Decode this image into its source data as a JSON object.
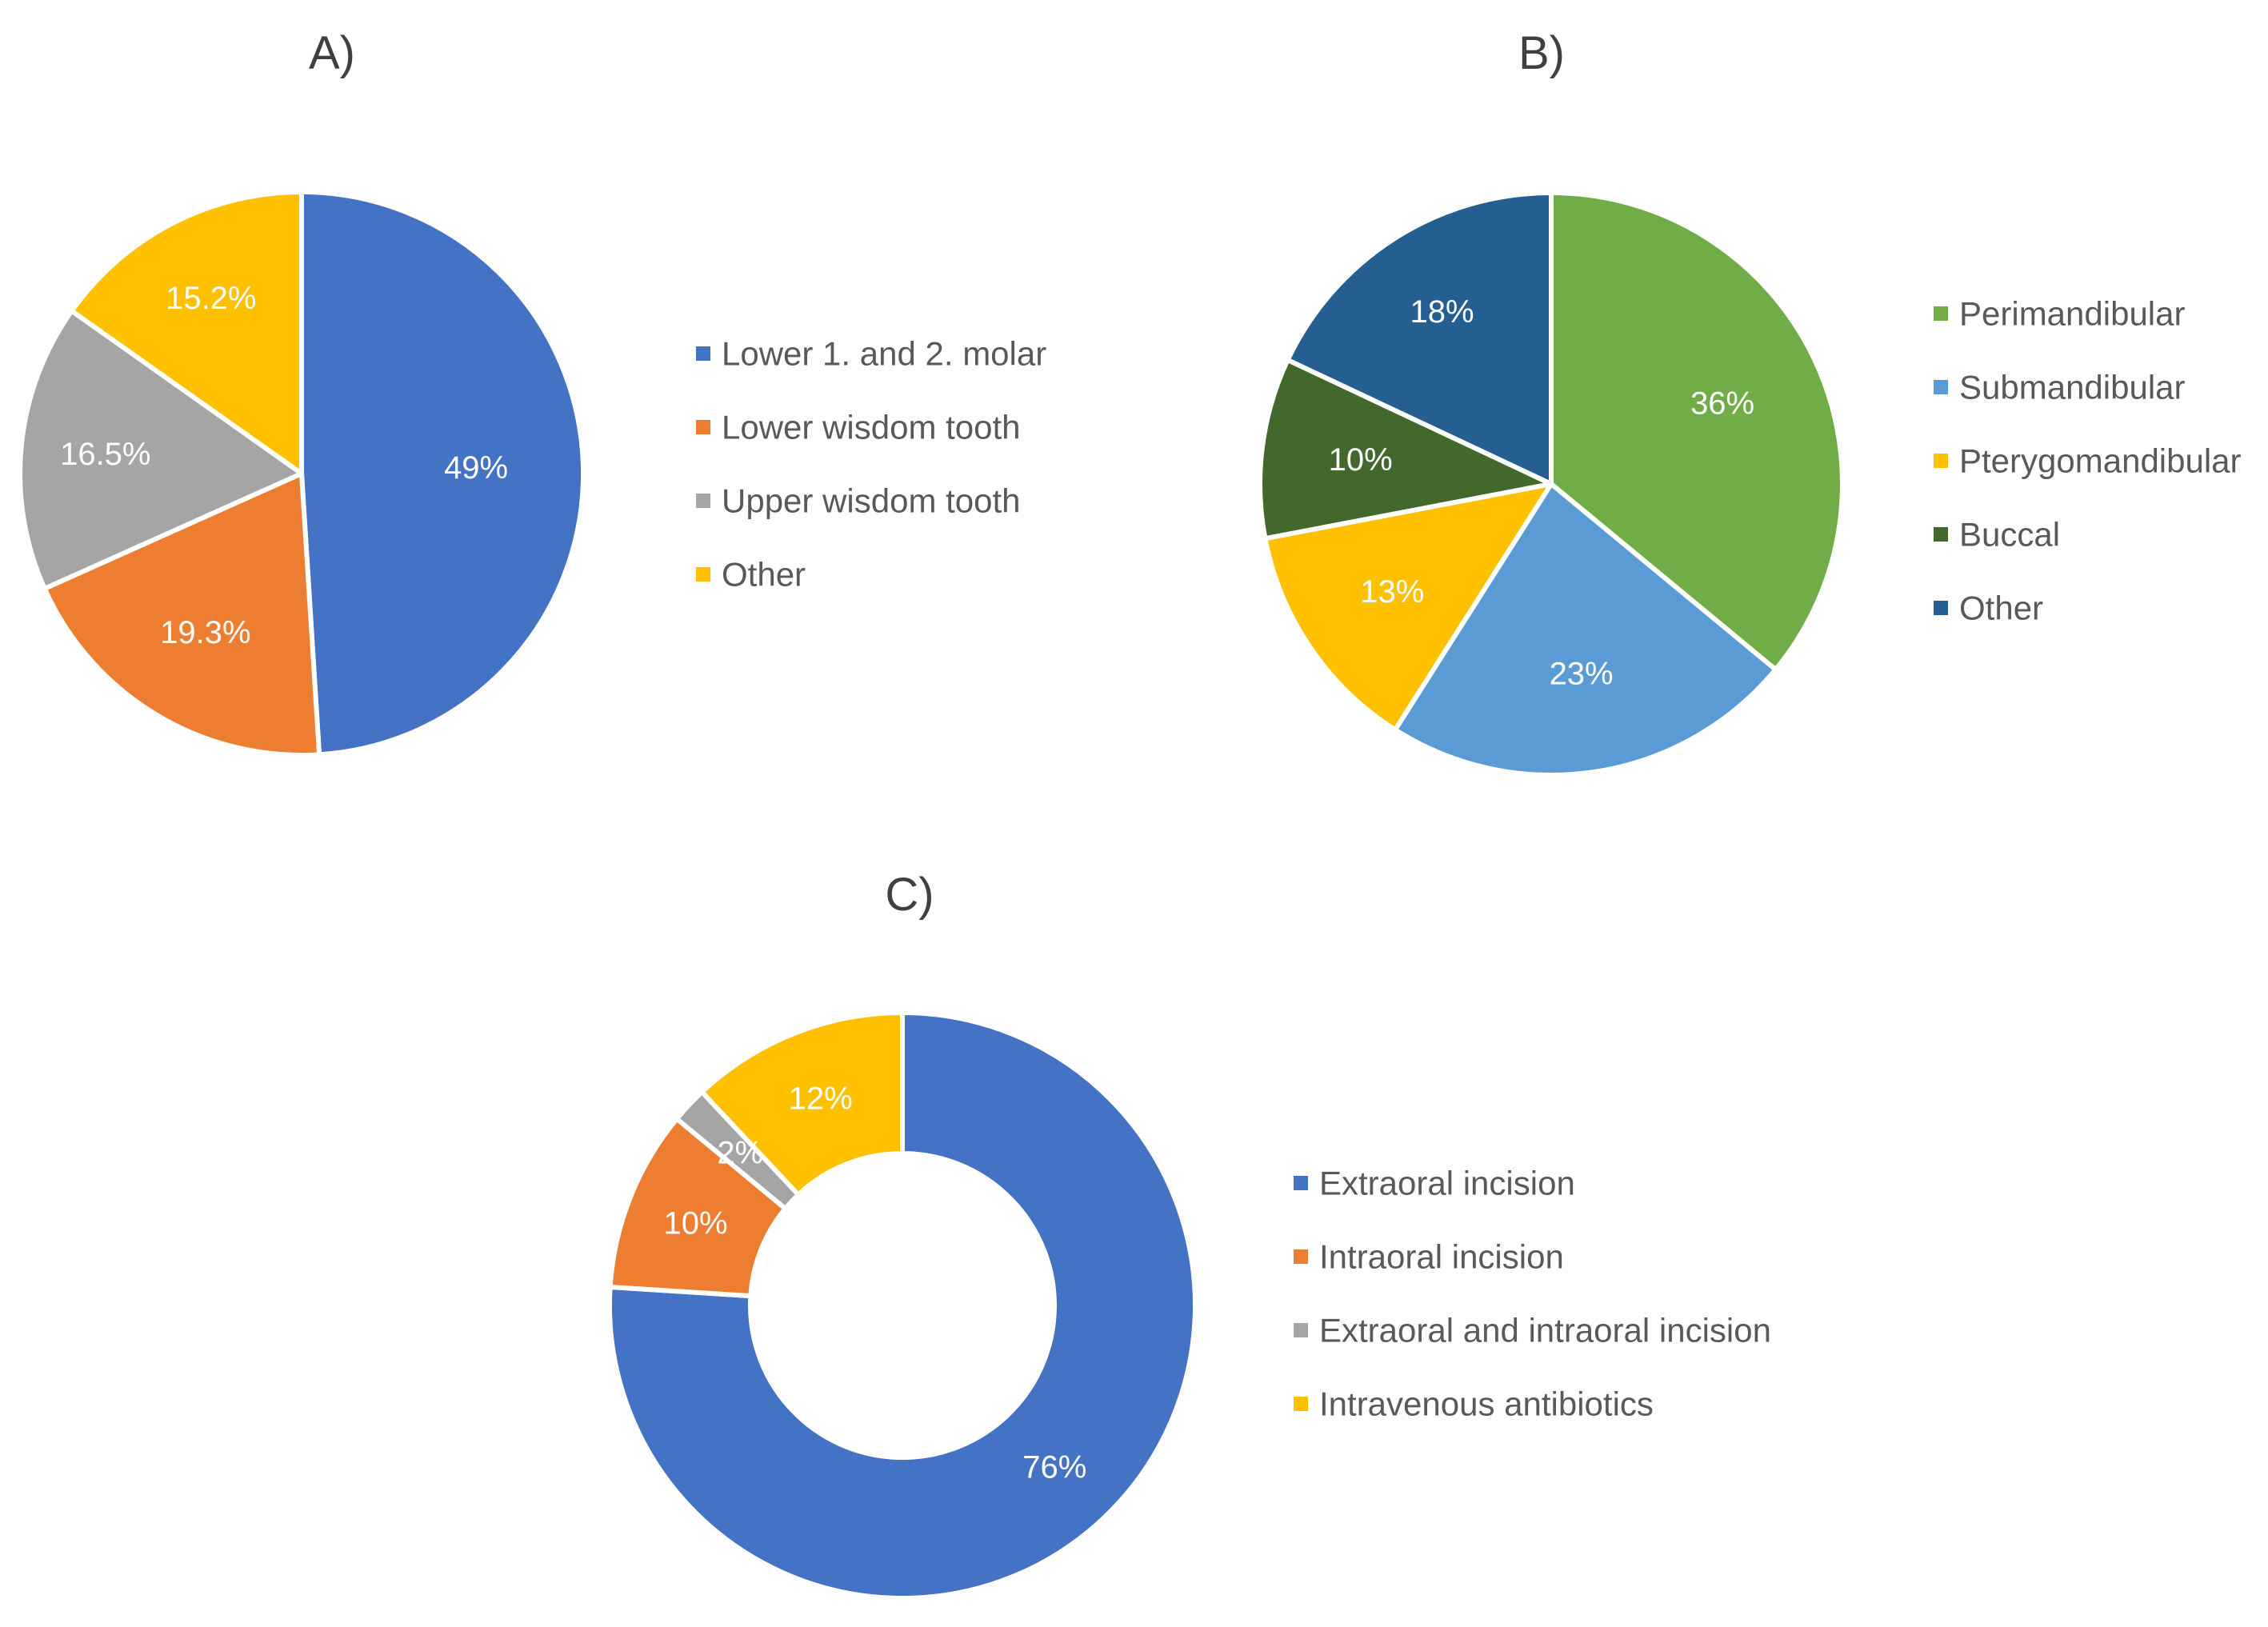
{
  "chart_data": [
    {
      "id": "A",
      "type": "pie",
      "title": "A)",
      "legend": "right",
      "slices": [
        {
          "name": "Lower 1. and 2. molar",
          "value": 49,
          "label": "49%",
          "color": "#4472C4"
        },
        {
          "name": "Lower wisdom tooth",
          "value": 19.3,
          "label": "19.3%",
          "color": "#ED7D31"
        },
        {
          "name": "Upper wisdom tooth",
          "value": 16.5,
          "label": "16.5%",
          "color": "#A5A5A5"
        },
        {
          "name": "Other",
          "value": 15.2,
          "label": "15.2%",
          "color": "#FFC000"
        }
      ]
    },
    {
      "id": "B",
      "type": "pie",
      "title": "B)",
      "legend": "right",
      "slices": [
        {
          "name": "Perimandibular",
          "value": 36,
          "label": "36%",
          "color": "#70AD47"
        },
        {
          "name": "Submandibular",
          "value": 23,
          "label": "23%",
          "color": "#5B9BD5"
        },
        {
          "name": "Pterygomandibular",
          "value": 13,
          "label": "13%",
          "color": "#FFC000"
        },
        {
          "name": "Buccal",
          "value": 10,
          "label": "10%",
          "color": "#43682B"
        },
        {
          "name": "Other",
          "value": 18,
          "label": "18%",
          "color": "#255E91"
        }
      ]
    },
    {
      "id": "C",
      "type": "donut",
      "title": "C)",
      "legend": "right",
      "slices": [
        {
          "name": "Extraoral incision",
          "value": 76,
          "label": "76%",
          "color": "#4472C4"
        },
        {
          "name": "Intraoral incision",
          "value": 10,
          "label": "10%",
          "color": "#ED7D31"
        },
        {
          "name": "Extraoral and intraoral incision",
          "value": 2,
          "label": "2%",
          "color": "#A5A5A5"
        },
        {
          "name": "Intravenous antibiotics",
          "value": 12,
          "label": "12%",
          "color": "#FFC000"
        }
      ]
    }
  ]
}
